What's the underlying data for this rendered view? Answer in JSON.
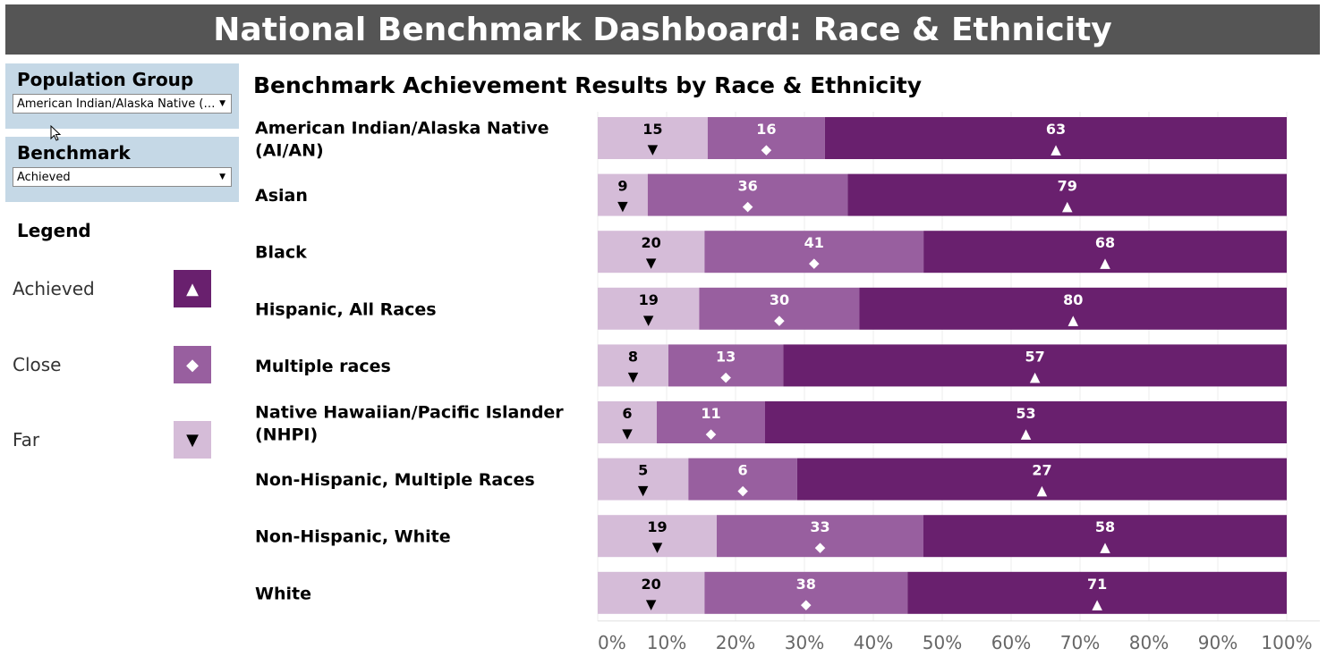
{
  "header": {
    "title": "National Benchmark Dashboard: Race & Ethnicity"
  },
  "filters": {
    "population_group": {
      "label": "Population Group",
      "value": "American Indian/Alaska Native (AI/AN)"
    },
    "benchmark": {
      "label": "Benchmark",
      "value": "Achieved"
    }
  },
  "legend": {
    "title": "Legend",
    "items": [
      {
        "label": "Achieved",
        "color": "#69206e",
        "symbol": "▲",
        "symbol_color": "#ffffff"
      },
      {
        "label": "Close",
        "color": "#985f9f",
        "symbol": "◆",
        "symbol_color": "#ffffff"
      },
      {
        "label": "Far",
        "color": "#d5bcd8",
        "symbol": "▼",
        "symbol_color": "#000000"
      }
    ]
  },
  "chart_data": {
    "type": "bar",
    "orientation": "horizontal",
    "stacked": true,
    "normalized": true,
    "title": "Benchmark Achievement Results by Race & Ethnicity",
    "categories": [
      "American Indian/Alaska Native (AI/AN)",
      "Asian",
      "Black",
      "Hispanic, All Races",
      "Multiple races",
      "Native Hawaiian/Pacific Islander (NHPI)",
      "Non-Hispanic, Multiple Races",
      "Non-Hispanic, White",
      "White"
    ],
    "series": [
      {
        "name": "Far",
        "color": "#d5bcd8",
        "symbol": "▼",
        "values": [
          15,
          9,
          20,
          19,
          8,
          6,
          5,
          19,
          20
        ]
      },
      {
        "name": "Close",
        "color": "#985f9f",
        "symbol": "◆",
        "values": [
          16,
          36,
          41,
          30,
          13,
          11,
          6,
          33,
          38
        ]
      },
      {
        "name": "Achieved",
        "color": "#69206e",
        "symbol": "▲",
        "values": [
          63,
          79,
          68,
          80,
          57,
          53,
          27,
          58,
          71
        ]
      }
    ],
    "xticks": [
      "0%",
      "10%",
      "20%",
      "30%",
      "40%",
      "50%",
      "60%",
      "70%",
      "80%",
      "90%",
      "100%"
    ],
    "xlim": [
      0,
      100
    ],
    "grid": true
  }
}
